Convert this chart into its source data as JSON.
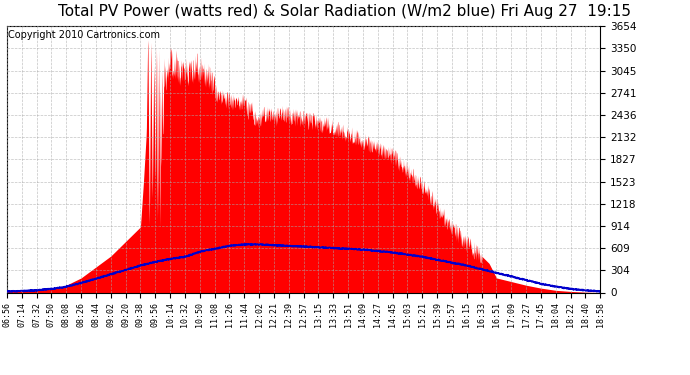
{
  "title": "Total PV Power (watts red) & Solar Radiation (W/m2 blue) Fri Aug 27  19:15",
  "copyright": "Copyright 2010 Cartronics.com",
  "ymax": 3654.5,
  "ymin": 0.0,
  "yticks": [
    0.0,
    304.5,
    609.1,
    913.6,
    1218.2,
    1522.7,
    1827.2,
    2131.8,
    2436.3,
    2740.9,
    3045.4,
    3349.9,
    3654.5
  ],
  "xtick_labels": [
    "06:56",
    "07:14",
    "07:32",
    "07:50",
    "08:08",
    "08:26",
    "08:44",
    "09:02",
    "09:20",
    "09:38",
    "09:56",
    "10:14",
    "10:32",
    "10:50",
    "11:08",
    "11:26",
    "11:44",
    "12:02",
    "12:21",
    "12:39",
    "12:57",
    "13:15",
    "13:33",
    "13:51",
    "14:09",
    "14:27",
    "14:45",
    "15:03",
    "15:21",
    "15:39",
    "15:57",
    "16:15",
    "16:33",
    "16:51",
    "17:09",
    "17:27",
    "17:45",
    "18:04",
    "18:22",
    "18:40",
    "18:58"
  ],
  "bg_color": "#ffffff",
  "plot_bg_color": "#ffffff",
  "grid_color": "#aaaaaa",
  "red_color": "#ff0000",
  "blue_color": "#0000cc",
  "title_fontsize": 11,
  "copyright_fontsize": 7
}
